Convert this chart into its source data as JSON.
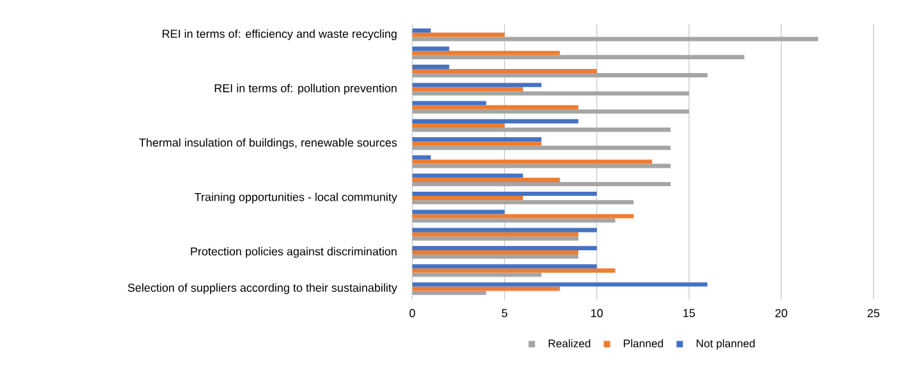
{
  "chart_data": {
    "type": "bar",
    "orientation": "horizontal",
    "categories": [
      "REI in terms of: efficiency and waste recycling",
      null,
      null,
      "REI in terms of: pollution prevention",
      null,
      null,
      "Thermal insulation of buildings, renewable sources",
      null,
      null,
      "Training opportunities - local community",
      null,
      null,
      "Protection policies against discrimination",
      null,
      "Selection of suppliers according to their sustainability"
    ],
    "series": [
      {
        "name": "Realized",
        "color": "#a5a5a5",
        "values": [
          22,
          18,
          16,
          15,
          15,
          14,
          14,
          14,
          14,
          12,
          11,
          9,
          9,
          7,
          4
        ]
      },
      {
        "name": "Planned",
        "color": "#ed7d31",
        "values": [
          5,
          8,
          10,
          6,
          9,
          5,
          7,
          13,
          8,
          6,
          12,
          9,
          9,
          11,
          8
        ]
      },
      {
        "name": "Not planned",
        "color": "#4472c4",
        "values": [
          1,
          2,
          2,
          7,
          4,
          9,
          7,
          1,
          6,
          10,
          5,
          10,
          10,
          10,
          16
        ]
      }
    ],
    "xlim": [
      0,
      25
    ],
    "xticks": [
      0,
      5,
      10,
      15,
      20,
      25
    ],
    "grid": "x",
    "legend": "bottom"
  }
}
